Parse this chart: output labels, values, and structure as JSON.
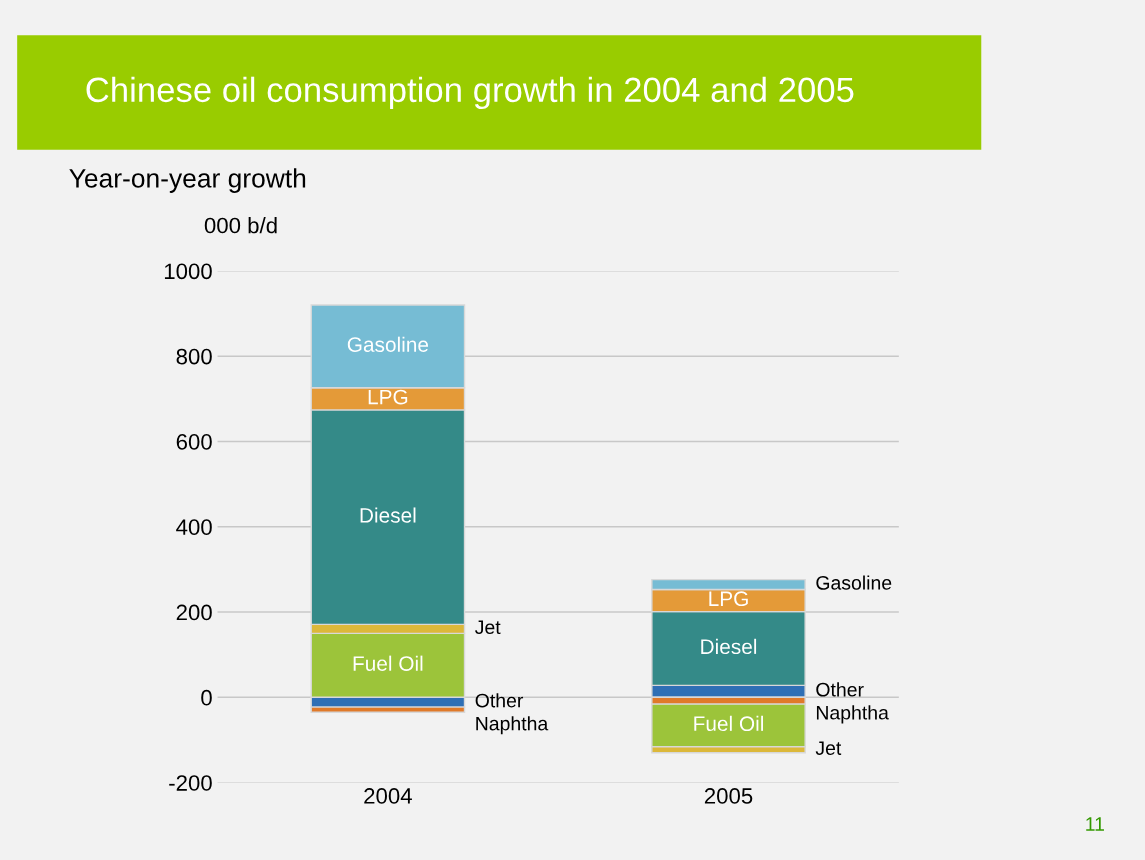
{
  "chart_data": {
    "type": "bar",
    "stacked": true,
    "title": "Chinese oil consumption growth in 2004 and 2005",
    "subtitle": "Year-on-year growth",
    "ylabel": "000 b/d",
    "categories": [
      "2004",
      "2005"
    ],
    "series": [
      {
        "name": "Other",
        "color": "#2f6fb5",
        "values": [
          -23,
          28
        ]
      },
      {
        "name": "Naphtha",
        "color": "#e07a2a",
        "values": [
          -12,
          -16
        ]
      },
      {
        "name": "Fuel Oil",
        "color": "#9cc43a",
        "values": [
          150,
          -100
        ]
      },
      {
        "name": "Jet",
        "color": "#dcb83a",
        "values": [
          21,
          -14
        ]
      },
      {
        "name": "Diesel",
        "color": "#348a88",
        "values": [
          503,
          173
        ]
      },
      {
        "name": "LPG",
        "color": "#e49a38",
        "values": [
          52,
          52
        ]
      },
      {
        "name": "Gasoline",
        "color": "#76bcd4",
        "values": [
          194,
          23
        ]
      }
    ],
    "ylim": [
      -200,
      1000
    ],
    "yticks": [
      -200,
      0,
      200,
      400,
      600,
      800,
      1000
    ],
    "grid": "y",
    "legend": false,
    "annotations": [
      "11"
    ]
  }
}
